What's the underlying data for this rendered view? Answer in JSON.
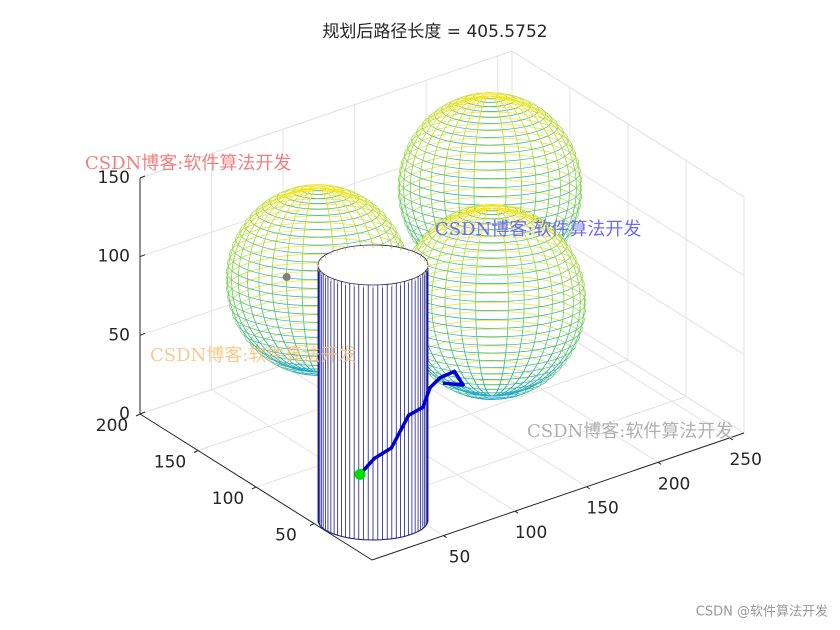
{
  "chart_data": {
    "type": "path3d",
    "title": "规划后路径长度 = 405.5752",
    "xlim": [
      0,
      260
    ],
    "ylim": [
      0,
      200
    ],
    "zlim": [
      0,
      150
    ],
    "xticks": [
      50,
      100,
      150,
      200,
      250
    ],
    "yticks": [
      50,
      100,
      150,
      200
    ],
    "zticks": [
      0,
      50,
      100,
      150
    ],
    "grid": true,
    "path": {
      "color": "#0000cc",
      "x": [
        20,
        30,
        42,
        54,
        64,
        69,
        76,
        86,
        88,
        78
      ],
      "y": [
        35,
        35,
        35,
        35,
        35,
        35,
        35,
        35,
        30,
        35
      ],
      "z": [
        32,
        39,
        42,
        59,
        61,
        72,
        76,
        77,
        70,
        72
      ]
    },
    "start": [
      20,
      35,
      32
    ],
    "start_color": "#00dd00",
    "goal": [
      62,
      150,
      91
    ],
    "goal_color": "#808080"
  },
  "watermarks": [
    "CSDN博客:软件算法开发",
    "CSDN博客:软件算法开发",
    "CSDN博客:软件算法开发",
    "CSDN博客:软件算法开发"
  ],
  "footer": "CSDN @软件算法开发"
}
